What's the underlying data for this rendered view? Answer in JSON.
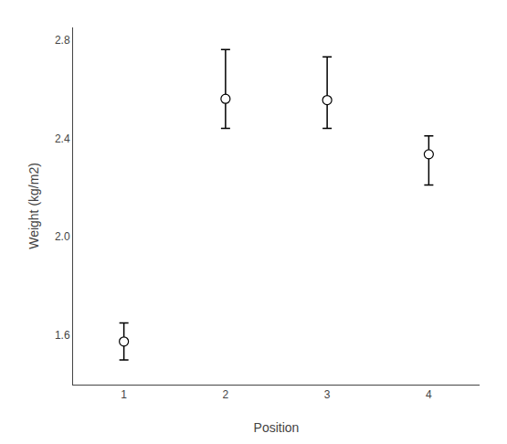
{
  "chart_data": {
    "type": "scatter",
    "x": [
      1,
      2,
      3,
      4
    ],
    "values": [
      1.575,
      2.56,
      2.555,
      2.335
    ],
    "yerr_lower": [
      0.075,
      0.12,
      0.115,
      0.125
    ],
    "yerr_upper": [
      0.075,
      0.2,
      0.175,
      0.075
    ],
    "xlabel": "Position",
    "ylabel": "Weight (kg/m2)",
    "xlim": [
      0.5,
      4.5
    ],
    "ylim": [
      1.4,
      2.85
    ],
    "xticks": [
      1,
      2,
      3,
      4
    ],
    "yticks": [
      1.6,
      {
        "value": 2.0,
        "label": "2.0"
      },
      2.4,
      2.8
    ],
    "color": "#000000",
    "marker": "open circle",
    "grid": false
  }
}
